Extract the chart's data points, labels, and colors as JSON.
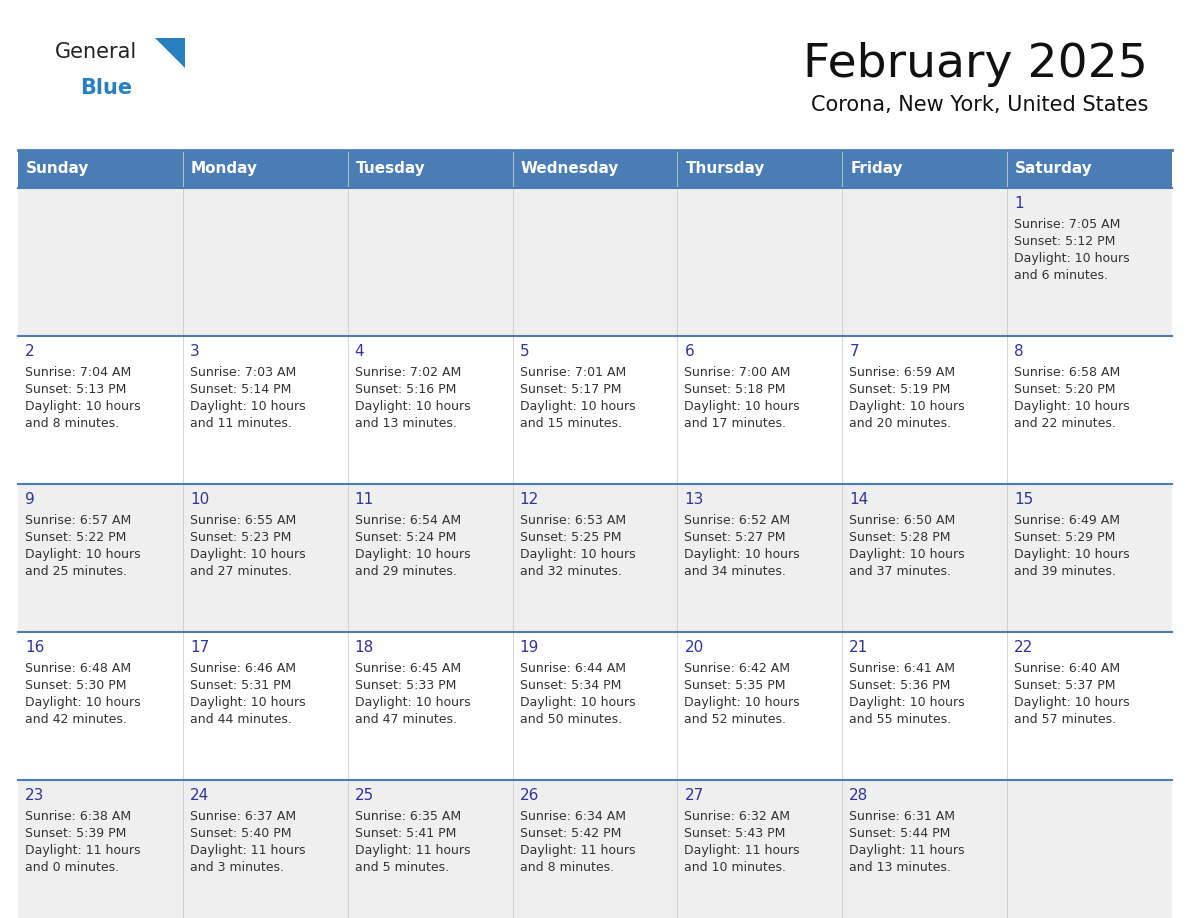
{
  "title": "February 2025",
  "subtitle": "Corona, New York, United States",
  "header_bg": "#4a7db5",
  "header_text": "#ffffff",
  "header_days": [
    "Sunday",
    "Monday",
    "Tuesday",
    "Wednesday",
    "Thursday",
    "Friday",
    "Saturday"
  ],
  "row_bg_odd": "#efefef",
  "row_bg_even": "#ffffff",
  "border_color": "#4a7db5",
  "text_color": "#333333",
  "day_num_color": "#333399",
  "logo_general_color": "#222222",
  "logo_blue_color": "#2a7fc1",
  "calendar": [
    [
      null,
      null,
      null,
      null,
      null,
      null,
      {
        "day": "1",
        "sunrise": "7:05 AM",
        "sunset": "5:12 PM",
        "daylight_h": "10 hours",
        "daylight_m": "and 6 minutes."
      }
    ],
    [
      {
        "day": "2",
        "sunrise": "7:04 AM",
        "sunset": "5:13 PM",
        "daylight_h": "10 hours",
        "daylight_m": "and 8 minutes."
      },
      {
        "day": "3",
        "sunrise": "7:03 AM",
        "sunset": "5:14 PM",
        "daylight_h": "10 hours",
        "daylight_m": "and 11 minutes."
      },
      {
        "day": "4",
        "sunrise": "7:02 AM",
        "sunset": "5:16 PM",
        "daylight_h": "10 hours",
        "daylight_m": "and 13 minutes."
      },
      {
        "day": "5",
        "sunrise": "7:01 AM",
        "sunset": "5:17 PM",
        "daylight_h": "10 hours",
        "daylight_m": "and 15 minutes."
      },
      {
        "day": "6",
        "sunrise": "7:00 AM",
        "sunset": "5:18 PM",
        "daylight_h": "10 hours",
        "daylight_m": "and 17 minutes."
      },
      {
        "day": "7",
        "sunrise": "6:59 AM",
        "sunset": "5:19 PM",
        "daylight_h": "10 hours",
        "daylight_m": "and 20 minutes."
      },
      {
        "day": "8",
        "sunrise": "6:58 AM",
        "sunset": "5:20 PM",
        "daylight_h": "10 hours",
        "daylight_m": "and 22 minutes."
      }
    ],
    [
      {
        "day": "9",
        "sunrise": "6:57 AM",
        "sunset": "5:22 PM",
        "daylight_h": "10 hours",
        "daylight_m": "and 25 minutes."
      },
      {
        "day": "10",
        "sunrise": "6:55 AM",
        "sunset": "5:23 PM",
        "daylight_h": "10 hours",
        "daylight_m": "and 27 minutes."
      },
      {
        "day": "11",
        "sunrise": "6:54 AM",
        "sunset": "5:24 PM",
        "daylight_h": "10 hours",
        "daylight_m": "and 29 minutes."
      },
      {
        "day": "12",
        "sunrise": "6:53 AM",
        "sunset": "5:25 PM",
        "daylight_h": "10 hours",
        "daylight_m": "and 32 minutes."
      },
      {
        "day": "13",
        "sunrise": "6:52 AM",
        "sunset": "5:27 PM",
        "daylight_h": "10 hours",
        "daylight_m": "and 34 minutes."
      },
      {
        "day": "14",
        "sunrise": "6:50 AM",
        "sunset": "5:28 PM",
        "daylight_h": "10 hours",
        "daylight_m": "and 37 minutes."
      },
      {
        "day": "15",
        "sunrise": "6:49 AM",
        "sunset": "5:29 PM",
        "daylight_h": "10 hours",
        "daylight_m": "and 39 minutes."
      }
    ],
    [
      {
        "day": "16",
        "sunrise": "6:48 AM",
        "sunset": "5:30 PM",
        "daylight_h": "10 hours",
        "daylight_m": "and 42 minutes."
      },
      {
        "day": "17",
        "sunrise": "6:46 AM",
        "sunset": "5:31 PM",
        "daylight_h": "10 hours",
        "daylight_m": "and 44 minutes."
      },
      {
        "day": "18",
        "sunrise": "6:45 AM",
        "sunset": "5:33 PM",
        "daylight_h": "10 hours",
        "daylight_m": "and 47 minutes."
      },
      {
        "day": "19",
        "sunrise": "6:44 AM",
        "sunset": "5:34 PM",
        "daylight_h": "10 hours",
        "daylight_m": "and 50 minutes."
      },
      {
        "day": "20",
        "sunrise": "6:42 AM",
        "sunset": "5:35 PM",
        "daylight_h": "10 hours",
        "daylight_m": "and 52 minutes."
      },
      {
        "day": "21",
        "sunrise": "6:41 AM",
        "sunset": "5:36 PM",
        "daylight_h": "10 hours",
        "daylight_m": "and 55 minutes."
      },
      {
        "day": "22",
        "sunrise": "6:40 AM",
        "sunset": "5:37 PM",
        "daylight_h": "10 hours",
        "daylight_m": "and 57 minutes."
      }
    ],
    [
      {
        "day": "23",
        "sunrise": "6:38 AM",
        "sunset": "5:39 PM",
        "daylight_h": "11 hours",
        "daylight_m": "and 0 minutes."
      },
      {
        "day": "24",
        "sunrise": "6:37 AM",
        "sunset": "5:40 PM",
        "daylight_h": "11 hours",
        "daylight_m": "and 3 minutes."
      },
      {
        "day": "25",
        "sunrise": "6:35 AM",
        "sunset": "5:41 PM",
        "daylight_h": "11 hours",
        "daylight_m": "and 5 minutes."
      },
      {
        "day": "26",
        "sunrise": "6:34 AM",
        "sunset": "5:42 PM",
        "daylight_h": "11 hours",
        "daylight_m": "and 8 minutes."
      },
      {
        "day": "27",
        "sunrise": "6:32 AM",
        "sunset": "5:43 PM",
        "daylight_h": "11 hours",
        "daylight_m": "and 10 minutes."
      },
      {
        "day": "28",
        "sunrise": "6:31 AM",
        "sunset": "5:44 PM",
        "daylight_h": "11 hours",
        "daylight_m": "and 13 minutes."
      },
      null
    ]
  ],
  "figsize": [
    11.88,
    9.18
  ],
  "dpi": 100
}
